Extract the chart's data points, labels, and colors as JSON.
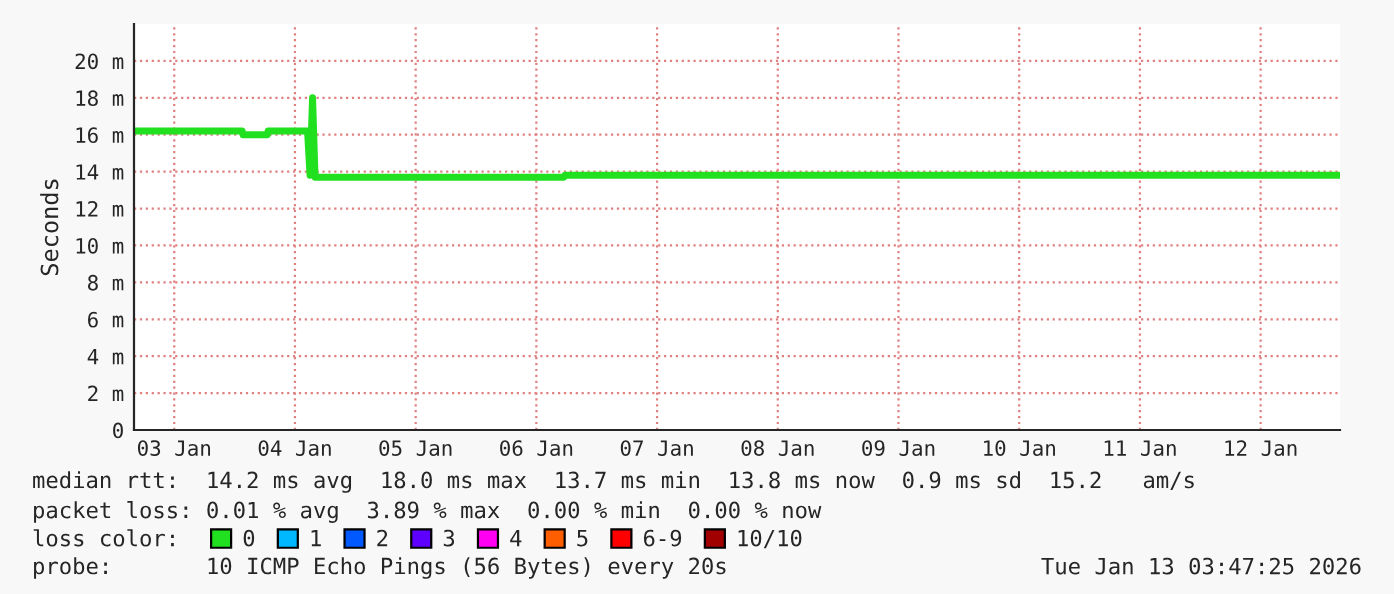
{
  "chart_data": {
    "type": "line",
    "ylabel": "Seconds",
    "x": [
      "2026-01-03T04:00",
      "2026-01-04T01:30",
      "2026-01-04T01:40",
      "2026-01-04T06:30",
      "2026-01-04T06:40",
      "2026-01-04T14:30",
      "2026-01-04T15:00",
      "2026-01-04T15:30",
      "2026-01-04T16:00",
      "2026-01-06T17:30",
      "2026-01-06T17:40",
      "2026-01-13T03:30"
    ],
    "series": [
      {
        "name": "0",
        "color": "#20e020",
        "values": [
          16.2,
          16.2,
          16.0,
          16.0,
          16.2,
          16.2,
          13.8,
          18.0,
          13.7,
          13.7,
          13.8,
          13.8
        ]
      },
      {
        "name": "1",
        "color": "#00b8ff",
        "values": [
          null,
          null,
          null,
          null,
          null,
          null,
          null,
          null,
          null,
          null,
          null,
          null
        ]
      },
      {
        "name": "2",
        "color": "#0059ff",
        "values": [
          null,
          null,
          null,
          null,
          null,
          null,
          null,
          null,
          null,
          null,
          null,
          null
        ]
      },
      {
        "name": "3",
        "color": "#5e00ff",
        "values": [
          null,
          null,
          null,
          null,
          null,
          null,
          null,
          null,
          null,
          null,
          null,
          null
        ]
      },
      {
        "name": "4",
        "color": "#ff00f3",
        "values": [
          null,
          null,
          null,
          null,
          null,
          null,
          null,
          null,
          null,
          null,
          null,
          null
        ]
      },
      {
        "name": "5",
        "color": "#ff5e00",
        "values": [
          null,
          null,
          null,
          null,
          null,
          null,
          null,
          null,
          null,
          null,
          null,
          null
        ]
      },
      {
        "name": "6-9",
        "color": "#ff0000",
        "values": [
          null,
          null,
          null,
          null,
          null,
          null,
          null,
          null,
          null,
          null,
          null,
          null
        ]
      },
      {
        "name": "10/10",
        "color": "#a10000",
        "values": [
          null,
          null,
          null,
          null,
          null,
          null,
          null,
          null,
          null,
          null,
          null,
          null
        ]
      }
    ],
    "legend_title": "loss color:",
    "legend": "bottom",
    "grid": true,
    "xlim": [
      "2026-01-03T04:00",
      "2026-01-13T03:47"
    ],
    "xticks": [
      {
        "value": "2026-01-03T12:00",
        "label": "03 Jan"
      },
      {
        "value": "2026-01-04T12:00",
        "label": "04 Jan"
      },
      {
        "value": "2026-01-05T12:00",
        "label": "05 Jan"
      },
      {
        "value": "2026-01-06T12:00",
        "label": "06 Jan"
      },
      {
        "value": "2026-01-07T12:00",
        "label": "07 Jan"
      },
      {
        "value": "2026-01-08T12:00",
        "label": "08 Jan"
      },
      {
        "value": "2026-01-09T12:00",
        "label": "09 Jan"
      },
      {
        "value": "2026-01-10T12:00",
        "label": "10 Jan"
      },
      {
        "value": "2026-01-11T12:00",
        "label": "11 Jan"
      },
      {
        "value": "2026-01-12T12:00",
        "label": "12 Jan"
      }
    ],
    "ylim": [
      0,
      22
    ],
    "yticks": [
      0,
      {
        "value": 2,
        "label": "2 m"
      },
      {
        "value": 4,
        "label": "4 m"
      },
      {
        "value": 6,
        "label": "6 m"
      },
      {
        "value": 8,
        "label": "8 m"
      },
      {
        "value": 10,
        "label": "10 m"
      },
      {
        "value": 12,
        "label": "12 m"
      },
      {
        "value": 14,
        "label": "14 m"
      },
      {
        "value": 16,
        "label": "16 m"
      },
      {
        "value": 18,
        "label": "18 m"
      },
      {
        "value": 20,
        "label": "20 m"
      }
    ],
    "annotations": [
      "median rtt:  14.2 ms avg  18.0 ms max  13.7 ms min  13.8 ms now  0.9 ms sd  15.2   am/s",
      "packet loss: 0.01 % avg  3.89 % max  0.00 % min  0.00 % now",
      "probe:       10 ICMP Echo Pings (56 Bytes) every 20s",
      "Tue Jan 13 03:47:25 2026"
    ]
  }
}
